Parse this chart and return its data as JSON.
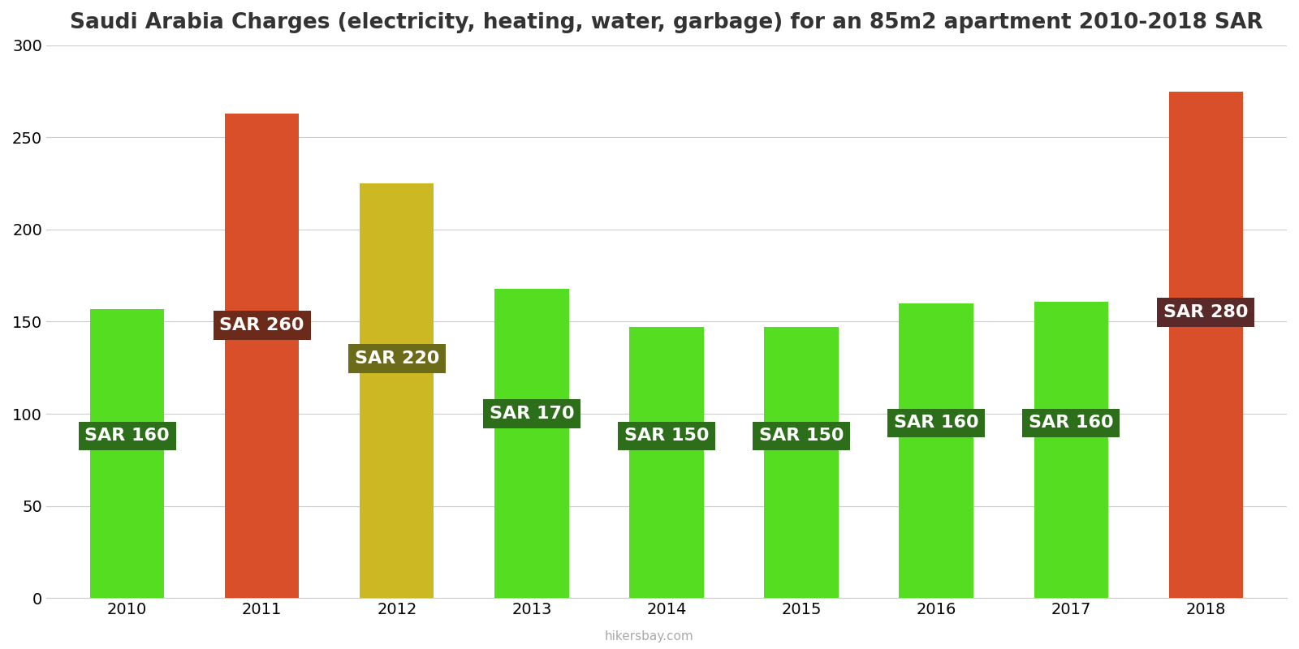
{
  "years": [
    2010,
    2011,
    2012,
    2013,
    2014,
    2015,
    2016,
    2017,
    2018
  ],
  "values": [
    157,
    263,
    225,
    168,
    147,
    147,
    160,
    161,
    275
  ],
  "bar_colors": [
    "#55dd22",
    "#d94f2a",
    "#ccb822",
    "#55dd22",
    "#55dd22",
    "#55dd22",
    "#55dd22",
    "#55dd22",
    "#d94f2a"
  ],
  "label_texts": [
    "SAR 160",
    "SAR 260",
    "SAR 220",
    "SAR 170",
    "SAR 150",
    "SAR 150",
    "SAR 160",
    "SAR 160",
    "SAR 280"
  ],
  "label_box_colors": [
    "#2d6e1a",
    "#6b2a1a",
    "#6b6b1a",
    "#2d6e1a",
    "#2d6e1a",
    "#2d6e1a",
    "#2d6e1a",
    "#2d6e1a",
    "#5a2a2a"
  ],
  "label_text_color": "#ffffff",
  "title": "Saudi Arabia Charges (electricity, heating, water, garbage) for an 85m2 apartment 2010-2018 SAR",
  "ylim": [
    0,
    300
  ],
  "yticks": [
    0,
    50,
    100,
    150,
    200,
    250,
    300
  ],
  "background_color": "#ffffff",
  "watermark": "hikersbay.com",
  "title_fontsize": 19,
  "label_fontsize": 16,
  "tick_fontsize": 14,
  "label_y_positions": [
    88,
    148,
    130,
    100,
    88,
    88,
    95,
    95,
    155
  ]
}
